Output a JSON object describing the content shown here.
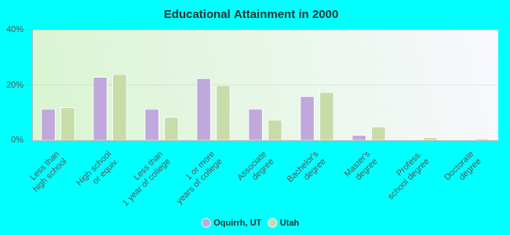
{
  "chart_data": {
    "type": "bar",
    "title": "Educational Attainment in 2000",
    "categories": [
      "Less than\nhigh school",
      "High school\nor equiv.",
      "Less than\n1 year of college",
      "1 or more\nyears of college",
      "Associate\ndegree",
      "Bachelor's\ndegree",
      "Master's\ndegree",
      "Profess.\nschool degree",
      "Doctorate\ndegree"
    ],
    "series": [
      {
        "name": "Oquirrh, UT",
        "color": "#c0a8dc",
        "values": [
          11.5,
          23,
          11.5,
          22.5,
          11.5,
          16,
          2,
          0,
          0
        ]
      },
      {
        "name": "Utah",
        "color": "#c8dcaa",
        "values": [
          12,
          24,
          8.5,
          20,
          7.5,
          17.5,
          5,
          1.2,
          0.8
        ]
      }
    ],
    "ylim": [
      0,
      40
    ],
    "yticks": [
      {
        "value": 0,
        "label": "0%"
      },
      {
        "value": 20,
        "label": "20%"
      },
      {
        "value": 40,
        "label": "40%"
      }
    ],
    "grid": true,
    "legend": "bottom"
  }
}
